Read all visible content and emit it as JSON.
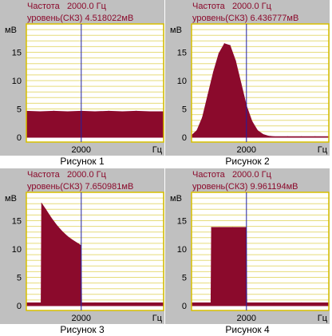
{
  "colors": {
    "panel_bg": "#c0c0c0",
    "plot_bg": "#ffffff",
    "frame": "#d8c000",
    "gridline": "#e6dc7a",
    "fill": "#8b0a2c",
    "cursor": "#2020a0",
    "header_text": "#8b0a2c",
    "axis_text": "#000000"
  },
  "chart_data": [
    {
      "type": "area",
      "caption": "Рисунок 1",
      "header_freq": "Частота   2000.0 Гц",
      "header_level": "уровень(СКЗ) 4.518022мВ",
      "ylabel": "мВ",
      "xunit": "Гц",
      "ylim": [
        0,
        20
      ],
      "y_ticks": [
        0,
        5,
        10,
        15
      ],
      "xlim": [
        0,
        5000
      ],
      "x_ticks": [
        2000
      ],
      "cursor_x": 2000,
      "grid": "horizontal",
      "series": [
        {
          "x": [
            0,
            500,
            1000,
            1500,
            2000,
            2500,
            3000,
            3500,
            4000,
            4500,
            5000
          ],
          "values": [
            4.6,
            4.5,
            4.6,
            4.5,
            4.6,
            4.5,
            4.6,
            4.5,
            4.6,
            4.5,
            4.5
          ]
        }
      ]
    },
    {
      "type": "area",
      "caption": "Рисунок 2",
      "header_freq": "Частота   2000.0 Гц",
      "header_level": "уровень(СКЗ) 6.436777мВ",
      "ylabel": "мВ",
      "xunit": "Гц",
      "ylim": [
        0,
        20
      ],
      "y_ticks": [
        0,
        5,
        10,
        15
      ],
      "xlim": [
        0,
        5000
      ],
      "x_ticks": [
        2000
      ],
      "cursor_x": 2000,
      "grid": "horizontal",
      "series": [
        {
          "x": [
            0,
            200,
            400,
            600,
            800,
            1000,
            1200,
            1400,
            1600,
            1800,
            2000,
            2200,
            2400,
            2600,
            2800,
            3000,
            3500,
            4000,
            4500,
            5000
          ],
          "values": [
            0.3,
            1.2,
            3.5,
            7.5,
            11.5,
            14.8,
            16.5,
            16.2,
            13.5,
            9.5,
            5.5,
            2.8,
            1.2,
            0.5,
            0.2,
            0.1,
            0.1,
            0.1,
            0.1,
            0.1
          ]
        }
      ]
    },
    {
      "type": "area",
      "caption": "Рисунок 3",
      "header_freq": "Частота   2000.0 Гц",
      "header_level": "уровень(СКЗ) 7.650981мВ",
      "ylabel": "мВ",
      "xunit": "Гц",
      "ylim": [
        0,
        20
      ],
      "y_ticks": [
        0,
        5,
        10,
        15
      ],
      "xlim": [
        0,
        5000
      ],
      "x_ticks": [
        2000
      ],
      "cursor_x": 2000,
      "grid": "horizontal",
      "series": [
        {
          "x": [
            0,
            540,
            560,
            700,
            900,
            1100,
            1300,
            1500,
            1700,
            1900,
            1990,
            2010,
            2500,
            3000,
            4000,
            5000
          ],
          "values": [
            0.5,
            0.5,
            18.0,
            17.0,
            15.5,
            14.2,
            13.1,
            12.2,
            11.5,
            10.9,
            10.6,
            0.5,
            0.5,
            0.5,
            0.5,
            0.5
          ]
        }
      ]
    },
    {
      "type": "area",
      "caption": "Рисунок 4",
      "header_freq": "Частота   2000.0 Гц",
      "header_level": "уровень(СКЗ) 9.961194мВ",
      "ylabel": "мВ",
      "xunit": "Гц",
      "ylim": [
        0,
        20
      ],
      "y_ticks": [
        0,
        5,
        10,
        15
      ],
      "xlim": [
        0,
        5000
      ],
      "x_ticks": [
        2000
      ],
      "cursor_x": 2000,
      "grid": "horizontal",
      "series": [
        {
          "x": [
            0,
            710,
            730,
            1000,
            1500,
            1990,
            2010,
            3000,
            4000,
            5000
          ],
          "values": [
            0.5,
            0.5,
            13.8,
            13.8,
            13.8,
            13.8,
            0.5,
            0.5,
            0.5,
            0.5
          ]
        }
      ]
    }
  ]
}
